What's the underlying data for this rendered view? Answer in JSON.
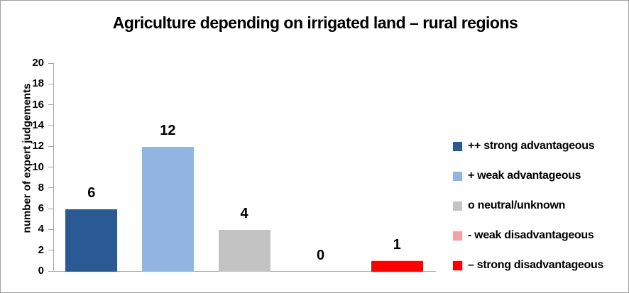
{
  "title": "Agriculture depending on irrigated land – rural regions",
  "chart_data": {
    "type": "bar",
    "title": "Agriculture depending on irrigated land – rural regions",
    "xlabel": "",
    "ylabel": "number of expert judgements",
    "ylim": [
      0,
      20
    ],
    "yticks": [
      0,
      2,
      4,
      6,
      8,
      10,
      12,
      14,
      16,
      18,
      20
    ],
    "grid": false,
    "legend_position": "right",
    "categories": [
      "++ strong advantageous",
      "+ weak advantageous",
      "o neutral/unknown",
      "- weak disadvantageous",
      "– strong disadvantageous"
    ],
    "values": [
      6,
      12,
      4,
      0,
      1
    ],
    "data_labels": [
      "6",
      "12",
      "4",
      "0",
      "1"
    ],
    "bar_colors": [
      "#2a5a94",
      "#92b4e1",
      "#c3c3c3",
      "#f2a2a2",
      "#ff0000"
    ]
  },
  "legend": {
    "items": [
      {
        "label": "++ strong advantageous",
        "color": "#2a5a94"
      },
      {
        "label": "+ weak advantageous",
        "color": "#92b4e1"
      },
      {
        "label": "o neutral/unknown",
        "color": "#c3c3c3"
      },
      {
        "label": "- weak disadvantageous",
        "color": "#f2a2a2"
      },
      {
        "label": "– strong disadvantageous",
        "color": "#ff0000"
      }
    ]
  },
  "colors": {
    "axis": "#a6a6a6",
    "frame_border": "#a0a0a0",
    "background": "#ffffff",
    "text": "#000000"
  }
}
